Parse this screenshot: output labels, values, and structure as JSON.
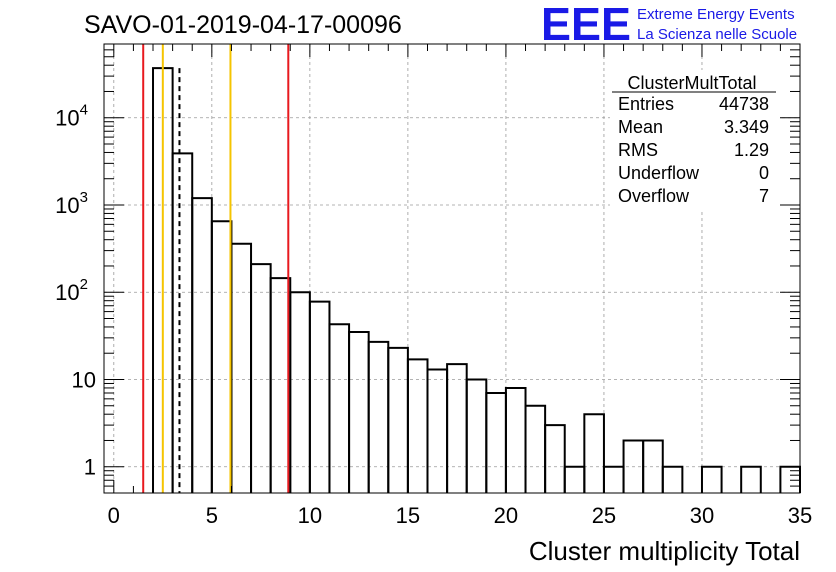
{
  "header": {
    "run_title": "SAVO-01-2019-04-17-00096",
    "logo_text": "EEE",
    "logo_line1": "Extreme Energy Events",
    "logo_line2": "La Scienza nelle Scuole"
  },
  "stats": {
    "title": "ClusterMultTotal",
    "rows": [
      {
        "label": "Entries",
        "value": "44738"
      },
      {
        "label": "Mean",
        "value": "3.349"
      },
      {
        "label": "RMS",
        "value": "1.29"
      },
      {
        "label": "Underflow",
        "value": "0"
      },
      {
        "label": "Overflow",
        "value": "7"
      }
    ]
  },
  "colors": {
    "red_line": "#e8191e",
    "yellow_line": "#f5c400",
    "logo_blue": "#1a1ae6",
    "grid": "#9a9a9a"
  },
  "chart_data": {
    "type": "histogram",
    "title": "SAVO-01-2019-04-17-00096",
    "xlabel": "Cluster multiplicity Total",
    "ylabel": "",
    "yscale": "log",
    "xlim": [
      -0.5,
      35.0
    ],
    "ylim": [
      0.5,
      70000
    ],
    "grid": true,
    "x_ticks": [
      "0",
      "5",
      "10",
      "15",
      "20",
      "25",
      "30",
      "35"
    ],
    "y_ticks": [
      {
        "value": 1,
        "base": "1",
        "exp": ""
      },
      {
        "value": 10,
        "base": "10",
        "exp": ""
      },
      {
        "value": 100,
        "base": "10",
        "exp": "2"
      },
      {
        "value": 1000,
        "base": "10",
        "exp": "3"
      },
      {
        "value": 10000,
        "base": "10",
        "exp": "4"
      }
    ],
    "bins": [
      {
        "x": 2.5,
        "count": 37000
      },
      {
        "x": 3.5,
        "count": 3900
      },
      {
        "x": 4.5,
        "count": 1200
      },
      {
        "x": 5.5,
        "count": 650
      },
      {
        "x": 6.5,
        "count": 360
      },
      {
        "x": 7.5,
        "count": 210
      },
      {
        "x": 8.5,
        "count": 145
      },
      {
        "x": 9.5,
        "count": 100
      },
      {
        "x": 10.5,
        "count": 78
      },
      {
        "x": 11.5,
        "count": 43
      },
      {
        "x": 12.5,
        "count": 35
      },
      {
        "x": 13.5,
        "count": 27
      },
      {
        "x": 14.5,
        "count": 23
      },
      {
        "x": 15.5,
        "count": 17
      },
      {
        "x": 16.5,
        "count": 13
      },
      {
        "x": 17.5,
        "count": 15
      },
      {
        "x": 18.5,
        "count": 10
      },
      {
        "x": 19.5,
        "count": 7
      },
      {
        "x": 20.5,
        "count": 8
      },
      {
        "x": 21.5,
        "count": 5
      },
      {
        "x": 22.5,
        "count": 3
      },
      {
        "x": 23.5,
        "count": 1
      },
      {
        "x": 24.5,
        "count": 4
      },
      {
        "x": 25.5,
        "count": 1
      },
      {
        "x": 26.5,
        "count": 2
      },
      {
        "x": 27.5,
        "count": 2
      },
      {
        "x": 28.5,
        "count": 1
      },
      {
        "x": 29.5,
        "count": 0
      },
      {
        "x": 30.5,
        "count": 1
      },
      {
        "x": 31.5,
        "count": 0
      },
      {
        "x": 32.5,
        "count": 1
      },
      {
        "x": 33.5,
        "count": 0
      },
      {
        "x": 34.5,
        "count": 1
      }
    ],
    "bin_width": 1,
    "vertical_lines": [
      {
        "x": 1.5,
        "color": "#e8191e",
        "style": "solid",
        "name": "red-marker-line-low"
      },
      {
        "x": 2.5,
        "color": "#f5c400",
        "style": "solid",
        "name": "yellow-marker-line-low"
      },
      {
        "x": 3.349,
        "color": "#000000",
        "style": "dashed",
        "name": "mean-dashed-line"
      },
      {
        "x": 5.95,
        "color": "#f5c400",
        "style": "solid",
        "name": "yellow-marker-line-high"
      },
      {
        "x": 8.9,
        "color": "#e8191e",
        "style": "solid",
        "name": "red-marker-line-high"
      }
    ]
  }
}
